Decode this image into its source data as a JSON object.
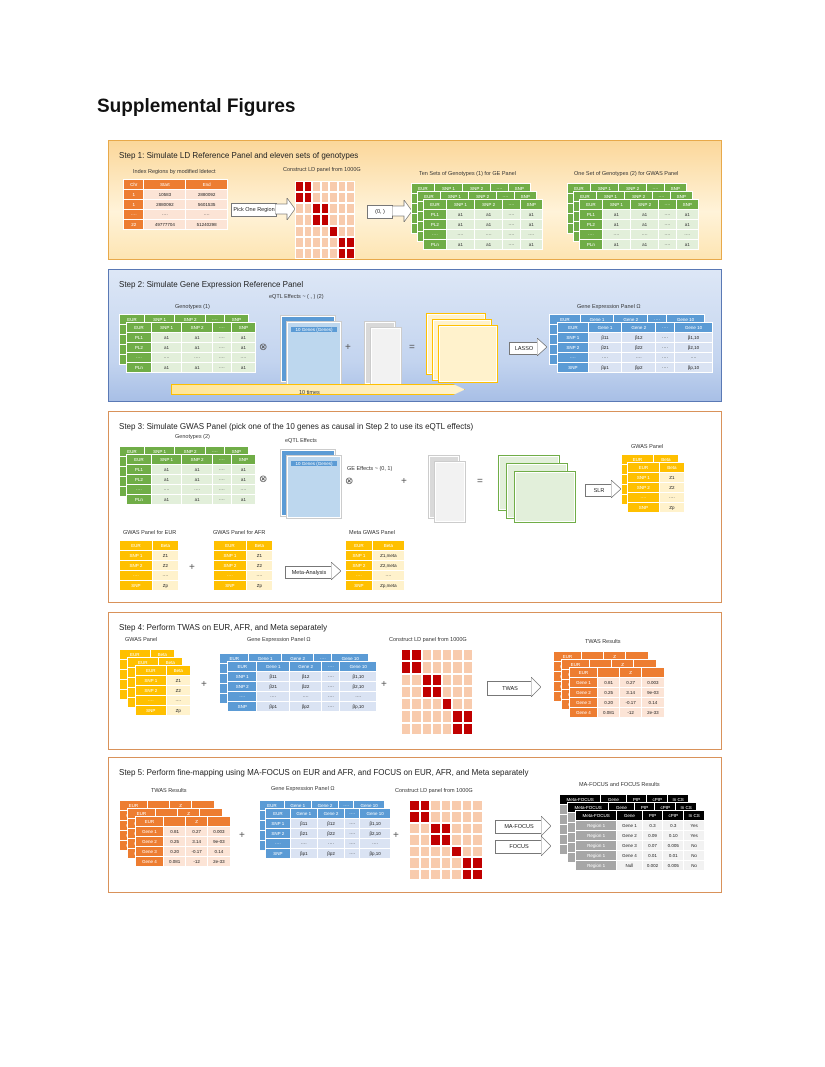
{
  "page": {
    "title": "Supplemental Figures"
  },
  "step1": {
    "title": "Step 1: Simulate LD Reference Panel and eleven sets of genotypes",
    "region_label": "Index Regions by modified ldetect",
    "region_headers": [
      "Chr",
      "Start",
      "End"
    ],
    "region_rows": [
      [
        "1",
        "10583",
        "2880092"
      ],
      [
        "1",
        "2880092",
        "5601535"
      ],
      [
        "····",
        "····",
        "····"
      ],
      [
        "22",
        "49777704",
        "51240298"
      ]
    ],
    "pick_label": "Pick One Region",
    "ld_label": "Construct LD panel from 1000G",
    "sim_label": "(0, )",
    "geno1_label": "Ten Sets of Genotypes (1) for GE Panel",
    "geno2_label": "One Set of Genotypes (2) for GWAS Panel"
  },
  "step2": {
    "title": "Step 2: Simulate Gene Expression Reference Panel",
    "geno_label": "Genotypes (1)",
    "eqtl_label": "eQTL Effects ~ ( , ) (2)",
    "eqtl_box": "10 Genes (Genes)",
    "ge_label": "Gene Expression Panel Ω",
    "lasso": "LASSO",
    "times": "10 times"
  },
  "step3": {
    "title": "Step 3: Simulate GWAS Panel (pick one of the 10 genes as causal in Step 2 to use its eQTL effects)",
    "geno_label": "Genotypes (2)",
    "eqtl_label": "eQTL Effects",
    "eqtl_box": "10 Genes (Genes)",
    "ge_effect": "GE Effects ~ (0, 1)",
    "slr": "SLR",
    "gwas_label": "GWAS Panel",
    "eur_label": "GWAS Panel for EUR",
    "afr_label": "GWAS Panel for AFR",
    "meta_label": "Meta GWAS Panel",
    "meta_btn": "Meta-Analysis"
  },
  "step4": {
    "title": "Step 4: Perform TWAS on EUR, AFR, and Meta separately",
    "gwas_label": "GWAS Panel",
    "ge_label": "Gene Expression Panel Ω",
    "ld_label": "Construct LD panel from 1000G",
    "twas_btn": "TWAS",
    "results_label": "TWAS Results"
  },
  "step5": {
    "title": "Step 5: Perform fine-mapping using MA-FOCUS on EUR and AFR, and FOCUS on EUR, AFR, and Meta separately",
    "twas_label": "TWAS Results",
    "ge_label": "Gene Expression Panel Ω",
    "ld_label": "Construct LD panel from 1000G",
    "mafocus_btn": "MA-FOCUS",
    "focus_btn": "FOCUS",
    "results_label": "MA-FOCUS and FOCUS Results"
  },
  "tables": {
    "geno_headers": [
      "EUR",
      "SNP 1",
      "SNP 2",
      "····",
      "SNP"
    ],
    "geno_rows": [
      [
        "PL1",
        "a1",
        "a1",
        "····",
        "a1"
      ],
      [
        "PL2",
        "a1",
        "a1",
        "····",
        "a1"
      ],
      [
        "····",
        "····",
        "····",
        "····",
        "····"
      ],
      [
        "PLn",
        "a1",
        "a1",
        "····",
        "a1"
      ]
    ],
    "ge_headers": [
      "EUR",
      "Gene 1",
      "Gene 2",
      "····",
      "Gene 10"
    ],
    "ge_rows": [
      [
        "SNP 1",
        "β11",
        "β12",
        "····",
        "β1,10"
      ],
      [
        "SNP 2",
        "β21",
        "β22",
        "····",
        "β2,10"
      ],
      [
        "····",
        "····",
        "····",
        "····",
        "····"
      ],
      [
        "SNP",
        "βp1",
        "βp2",
        "····",
        "βp,10"
      ]
    ],
    "gwas_headers": [
      "EUR",
      "Beta"
    ],
    "gwas_rows": [
      [
        "SNP 1",
        "Z1"
      ],
      [
        "SNP 2",
        "Z2"
      ],
      [
        "····",
        "····"
      ],
      [
        "SNP",
        "Zp"
      ]
    ],
    "meta_rows": [
      [
        "SNP 1",
        "Z1,meta"
      ],
      [
        "SNP 2",
        "Z2,meta"
      ],
      [
        "····",
        "····"
      ],
      [
        "SNP",
        "Zp,meta"
      ]
    ],
    "twas_headers": [
      "EUR",
      "",
      "Z",
      ""
    ],
    "twas_rows": [
      [
        "Gene 1",
        "0.81",
        "0.27",
        "0.003"
      ],
      [
        "Gene 2",
        "0.25",
        "3.14",
        "9e-03"
      ],
      [
        "Gene 3",
        "0.20",
        "-0.17",
        "0.14"
      ],
      [
        "Gene 4",
        "0.081",
        "-12",
        "2e-33"
      ]
    ],
    "focus_headers": [
      "Meta-FOCUS",
      "Gene",
      "PIP",
      "cPIP",
      "In CS"
    ],
    "focus_rows": [
      [
        "Region 1",
        "Gene 1",
        "0.3",
        "0.3",
        "Yes"
      ],
      [
        "Region 1",
        "Gene 2",
        "0.09",
        "0.10",
        "Yes"
      ],
      [
        "Region 1",
        "Gene 3",
        "0.07",
        "0.005",
        "No"
      ],
      [
        "Region 1",
        "Gene 4",
        "0.01",
        "0.01",
        "No"
      ],
      [
        "Region 1",
        "Null",
        "0.002",
        "0.005",
        "No"
      ]
    ]
  },
  "colors": {
    "green": "#70ad47",
    "orange": "#ed7d31",
    "blue": "#5b9bd5",
    "yellow": "#ffc000",
    "ld_red": "#c00000"
  }
}
